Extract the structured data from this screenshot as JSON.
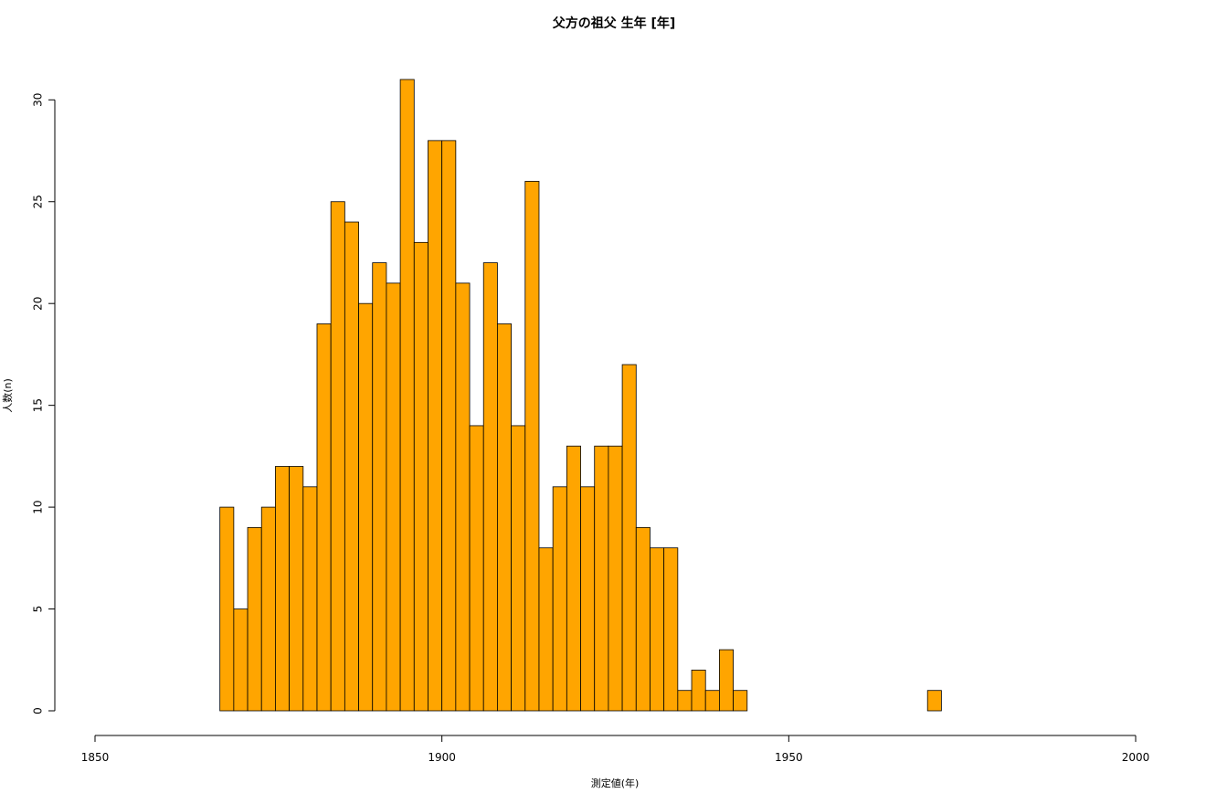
{
  "chart_data": {
    "type": "histogram",
    "title": "父方の祖父 生年 [年]",
    "x_label": "測定値(年)",
    "y_label": "人数(n)",
    "bins": [
      1868,
      1870,
      1872,
      1874,
      1876,
      1878,
      1880,
      1882,
      1884,
      1886,
      1888,
      1890,
      1892,
      1894,
      1896,
      1898,
      1900,
      1902,
      1904,
      1906,
      1908,
      1910,
      1912,
      1914,
      1916,
      1918,
      1920,
      1922,
      1924,
      1926,
      1928,
      1930,
      1932,
      1934,
      1936,
      1938,
      1940,
      1942,
      1944,
      1946,
      1948,
      1950,
      1952,
      1954,
      1956,
      1958,
      1960,
      1962,
      1964,
      1966,
      1968,
      1970,
      1972
    ],
    "values": [
      10,
      5,
      9,
      10,
      12,
      12,
      11,
      19,
      25,
      24,
      20,
      22,
      21,
      31,
      23,
      28,
      28,
      21,
      14,
      22,
      19,
      14,
      26,
      8,
      11,
      13,
      11,
      13,
      13,
      17,
      9,
      8,
      8,
      1,
      2,
      1,
      3,
      1,
      0,
      0,
      0,
      0,
      0,
      0,
      0,
      0,
      0,
      0,
      0,
      0,
      0,
      1
    ],
    "color": "#ffa500",
    "xlim": [
      1850,
      2000
    ],
    "xticks": [
      1850,
      1900,
      1950,
      2000
    ],
    "ylim": [
      0,
      31
    ],
    "yticks": [
      0,
      5,
      10,
      15,
      20,
      25,
      30
    ]
  }
}
